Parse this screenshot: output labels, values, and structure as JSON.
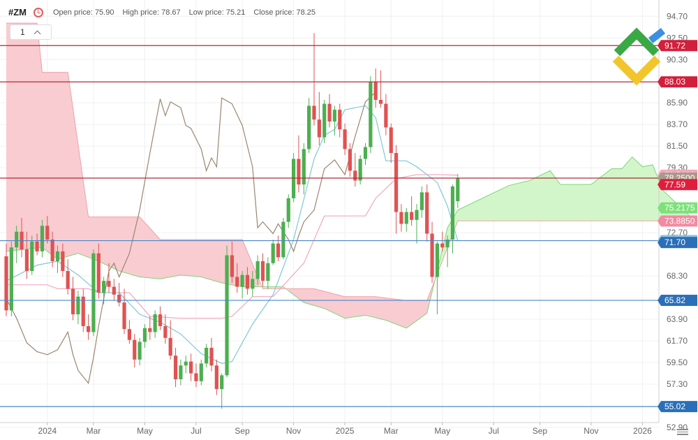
{
  "header": {
    "symbol": "#ZM",
    "open_label": "Open price:",
    "open_value": "75.90",
    "high_label": "High price:",
    "high_value": "78.67",
    "low_label": "Low price:",
    "low_value": "75.21",
    "close_label": "Close price:",
    "close_value": "78.25"
  },
  "interval": {
    "value": "1"
  },
  "colors": {
    "up": "#4caf50",
    "down": "#e05252",
    "cloud_red": "#f8c6cc",
    "cloud_green": "#cdf5c4",
    "resistance": "#b02a3a",
    "support": "#4a86c8"
  },
  "chart_data": {
    "type": "candlestick",
    "ylim": [
      52.9,
      96.0
    ],
    "y_ticks": [
      "94.70",
      "92.50",
      "90.30",
      "85.90",
      "83.70",
      "81.50",
      "79.30",
      "72.70",
      "68.30",
      "63.90",
      "61.70",
      "59.50",
      "57.30",
      "52.90"
    ],
    "y_tick_values": [
      94.7,
      92.5,
      90.3,
      85.9,
      83.7,
      81.5,
      79.3,
      72.7,
      68.3,
      63.9,
      61.7,
      59.5,
      57.3,
      52.9
    ],
    "x_ticks": [
      "2024",
      "Mar",
      "May",
      "Jul",
      "Sep",
      "Nov",
      "2025",
      "Mar",
      "May",
      "Jul",
      "Sep",
      "Nov",
      "2026"
    ],
    "x_tick_index": [
      8,
      17,
      27,
      37,
      46,
      56,
      66,
      75,
      85,
      95,
      104,
      114,
      124
    ],
    "horizontal_levels": [
      {
        "value": 91.72,
        "label": "91.72",
        "kind": "resistance"
      },
      {
        "value": 88.03,
        "label": "88.03",
        "kind": "resistance"
      },
      {
        "value": 78.25,
        "label": "78.2500",
        "kind": "close"
      },
      {
        "value": 71.89,
        "label": "71.8950",
        "kind": "support"
      },
      {
        "value": 65.82,
        "label": "65.82",
        "kind": "support"
      },
      {
        "value": 55.02,
        "label": "55.02",
        "kind": "support"
      }
    ],
    "price_tags": [
      {
        "value": 78.54,
        "label": "78.5400",
        "color": "#f4a6b8"
      },
      {
        "value": 78.25,
        "label": "78.2500",
        "color": "#a89a8a"
      },
      {
        "value": 77.59,
        "label": "77.59",
        "color": "#e01e3c"
      },
      {
        "value": 75.2175,
        "label": "75.2175",
        "color": "#7ee07a"
      },
      {
        "value": 73.885,
        "label": "73.8850",
        "color": "#f28aa0"
      },
      {
        "value": 71.895,
        "label": "71.8950",
        "color": "#8fc3e0"
      },
      {
        "value": 71.7,
        "label": "71.70",
        "color": "#2a6fb8"
      },
      {
        "value": 65.82,
        "label": "65.82",
        "color": "#2a6fb8"
      },
      {
        "value": 55.02,
        "label": "55.02",
        "color": "#2a6fb8"
      },
      {
        "value": 91.72,
        "label": "91.72",
        "color": "#d21f3c"
      },
      {
        "value": 88.03,
        "label": "88.03",
        "color": "#d21f3c"
      }
    ],
    "candles": [
      [
        70.3,
        71.6,
        64.2,
        64.8
      ],
      [
        64.8,
        71.8,
        64.2,
        71.2
      ],
      [
        71.2,
        73.4,
        69.6,
        72.8
      ],
      [
        72.8,
        74.2,
        70.2,
        71.0
      ],
      [
        71.0,
        72.8,
        68.0,
        68.8
      ],
      [
        68.8,
        72.4,
        68.4,
        71.8
      ],
      [
        71.8,
        72.6,
        70.4,
        70.8
      ],
      [
        70.8,
        74.0,
        70.2,
        73.4
      ],
      [
        73.4,
        74.4,
        71.6,
        72.0
      ],
      [
        72.0,
        72.8,
        69.2,
        69.8
      ],
      [
        69.8,
        71.4,
        68.6,
        70.8
      ],
      [
        70.8,
        71.6,
        68.2,
        68.8
      ],
      [
        68.8,
        70.0,
        66.4,
        67.0
      ],
      [
        67.0,
        68.2,
        63.8,
        64.4
      ],
      [
        64.4,
        66.8,
        63.4,
        66.2
      ],
      [
        66.2,
        67.0,
        62.6,
        63.2
      ],
      [
        63.2,
        64.4,
        61.8,
        62.6
      ],
      [
        62.6,
        71.0,
        62.2,
        70.6
      ],
      [
        70.6,
        71.6,
        66.0,
        66.6
      ],
      [
        66.6,
        68.2,
        65.4,
        67.8
      ],
      [
        67.8,
        69.6,
        66.6,
        67.2
      ],
      [
        67.2,
        68.0,
        65.8,
        66.4
      ],
      [
        66.4,
        67.6,
        65.2,
        65.6
      ],
      [
        65.6,
        67.0,
        62.4,
        62.9
      ],
      [
        62.9,
        63.8,
        61.4,
        61.8
      ],
      [
        61.8,
        62.4,
        59.0,
        59.8
      ],
      [
        59.8,
        62.0,
        59.2,
        61.6
      ],
      [
        61.6,
        63.4,
        61.0,
        63.0
      ],
      [
        63.0,
        64.2,
        61.8,
        62.6
      ],
      [
        62.6,
        64.8,
        62.0,
        64.4
      ],
      [
        64.4,
        65.2,
        62.8,
        63.2
      ],
      [
        63.2,
        64.4,
        61.4,
        62.0
      ],
      [
        62.0,
        63.8,
        59.8,
        60.2
      ],
      [
        60.2,
        61.0,
        57.0,
        57.8
      ],
      [
        57.8,
        59.8,
        57.2,
        59.2
      ],
      [
        59.2,
        60.2,
        58.4,
        59.6
      ],
      [
        59.6,
        60.4,
        57.6,
        58.4
      ],
      [
        58.4,
        59.4,
        57.0,
        57.6
      ],
      [
        57.6,
        59.8,
        57.2,
        59.4
      ],
      [
        59.4,
        61.4,
        59.0,
        61.0
      ],
      [
        61.0,
        62.0,
        58.6,
        59.2
      ],
      [
        59.2,
        59.8,
        56.2,
        56.8
      ],
      [
        56.8,
        58.4,
        54.8,
        58.2
      ],
      [
        58.2,
        71.4,
        58.0,
        70.4
      ],
      [
        70.4,
        71.8,
        67.6,
        68.2
      ],
      [
        68.2,
        69.6,
        66.6,
        67.2
      ],
      [
        67.2,
        68.8,
        66.0,
        68.4
      ],
      [
        68.4,
        69.2,
        66.4,
        67.0
      ],
      [
        67.0,
        68.8,
        66.2,
        68.0
      ],
      [
        68.0,
        70.4,
        67.4,
        69.8
      ],
      [
        69.8,
        70.6,
        67.2,
        67.8
      ],
      [
        67.8,
        70.2,
        67.0,
        69.6
      ],
      [
        69.6,
        72.0,
        69.4,
        71.6
      ],
      [
        71.6,
        72.4,
        69.8,
        70.2
      ],
      [
        70.2,
        74.2,
        70.0,
        73.8
      ],
      [
        73.8,
        76.6,
        73.2,
        76.2
      ],
      [
        76.2,
        80.8,
        75.8,
        80.2
      ],
      [
        80.2,
        82.6,
        76.8,
        77.6
      ],
      [
        77.6,
        81.8,
        76.6,
        81.2
      ],
      [
        81.2,
        86.4,
        80.8,
        85.6
      ],
      [
        85.6,
        93.0,
        83.6,
        84.2
      ],
      [
        84.2,
        87.0,
        81.6,
        82.4
      ],
      [
        82.4,
        86.2,
        81.8,
        85.8
      ],
      [
        85.8,
        86.8,
        83.4,
        84.0
      ],
      [
        84.0,
        85.6,
        82.6,
        85.2
      ],
      [
        85.2,
        85.8,
        82.4,
        83.2
      ],
      [
        83.2,
        83.8,
        80.6,
        81.2
      ],
      [
        81.2,
        81.8,
        78.4,
        79.0
      ],
      [
        79.0,
        80.8,
        77.4,
        78.0
      ],
      [
        78.0,
        80.6,
        77.6,
        80.2
      ],
      [
        80.2,
        81.8,
        79.6,
        81.4
      ],
      [
        81.4,
        88.6,
        80.8,
        88.0
      ],
      [
        88.0,
        89.4,
        85.4,
        86.2
      ],
      [
        86.2,
        89.2,
        85.4,
        85.8
      ],
      [
        85.8,
        86.8,
        82.6,
        83.4
      ],
      [
        83.4,
        83.8,
        79.8,
        80.8
      ],
      [
        80.8,
        81.6,
        72.6,
        74.8
      ],
      [
        74.8,
        75.6,
        72.8,
        73.6
      ],
      [
        73.6,
        75.2,
        72.8,
        74.8
      ],
      [
        74.8,
        76.4,
        73.4,
        74.0
      ],
      [
        74.0,
        75.6,
        71.6,
        75.0
      ],
      [
        75.0,
        77.4,
        74.2,
        76.8
      ],
      [
        76.8,
        77.6,
        71.8,
        72.6
      ],
      [
        72.6,
        73.8,
        67.6,
        68.2
      ],
      [
        68.2,
        71.8,
        64.4,
        71.6
      ],
      [
        71.6,
        72.8,
        70.8,
        71.2
      ],
      [
        71.2,
        72.4,
        69.2,
        72.0
      ],
      [
        72.0,
        77.6,
        70.6,
        77.4
      ],
      [
        75.9,
        78.67,
        75.21,
        78.25
      ]
    ],
    "cloud_span_a": [
      [
        0,
        70.8
      ],
      [
        7,
        71.2
      ],
      [
        10,
        70.0
      ],
      [
        14,
        70.6
      ],
      [
        18,
        69.8
      ],
      [
        22,
        68.8
      ],
      [
        26,
        68.2
      ],
      [
        30,
        68.0
      ],
      [
        34,
        68.4
      ],
      [
        38,
        68.2
      ],
      [
        42,
        67.6
      ],
      [
        46,
        67.2
      ],
      [
        50,
        67.2
      ],
      [
        54,
        67.2
      ],
      [
        58,
        65.6
      ],
      [
        62,
        65.0
      ],
      [
        66,
        64.0
      ],
      [
        70,
        64.3
      ],
      [
        74,
        63.8
      ],
      [
        78,
        63.0
      ],
      [
        82,
        64.5
      ],
      [
        86,
        73.2
      ],
      [
        88,
        75.0
      ],
      [
        94,
        76.5
      ],
      [
        98,
        77.5
      ],
      [
        102,
        78.0
      ],
      [
        106,
        79.0
      ],
      [
        108,
        77.6
      ],
      [
        114,
        77.6
      ],
      [
        118,
        79.2
      ],
      [
        120,
        79.2
      ],
      [
        122,
        80.4
      ],
      [
        124,
        79.4
      ],
      [
        126,
        79.6
      ],
      [
        128,
        77.0
      ],
      [
        130,
        76.0
      ],
      [
        134,
        74.0
      ],
      [
        136,
        73.8
      ]
    ],
    "cloud_span_b": [
      [
        0,
        94.0
      ],
      [
        6,
        94.0
      ],
      [
        7,
        89.0
      ],
      [
        12,
        89.0
      ],
      [
        16,
        74.3
      ],
      [
        26,
        74.3
      ],
      [
        30,
        72.0
      ],
      [
        46,
        72.0
      ],
      [
        50,
        67.0
      ],
      [
        60,
        67.0
      ],
      [
        66,
        66.2
      ],
      [
        72,
        66.2
      ],
      [
        78,
        65.8
      ],
      [
        82,
        65.8
      ],
      [
        88,
        73.9
      ],
      [
        136,
        73.9
      ]
    ],
    "kijun": [
      [
        0,
        67.4
      ],
      [
        8,
        67.4
      ],
      [
        10,
        67.0
      ],
      [
        16,
        67.0
      ],
      [
        18,
        66.6
      ],
      [
        24,
        66.6
      ],
      [
        28,
        64.2
      ],
      [
        34,
        64.0
      ],
      [
        42,
        64.0
      ],
      [
        44,
        64.2
      ],
      [
        48,
        66.2
      ],
      [
        52,
        66.2
      ],
      [
        58,
        69.6
      ],
      [
        62,
        74.4
      ],
      [
        70,
        74.4
      ],
      [
        72,
        76.2
      ],
      [
        76,
        78.2
      ],
      [
        80,
        78.6
      ],
      [
        84,
        78.6
      ],
      [
        88,
        78.54
      ]
    ],
    "tenkan": [
      [
        0,
        67.8
      ],
      [
        6,
        69.4
      ],
      [
        10,
        69.8
      ],
      [
        14,
        68.4
      ],
      [
        18,
        66.6
      ],
      [
        22,
        66.6
      ],
      [
        26,
        64.4
      ],
      [
        30,
        63.6
      ],
      [
        34,
        62.4
      ],
      [
        38,
        60.4
      ],
      [
        42,
        59.4
      ],
      [
        44,
        59.6
      ],
      [
        48,
        63.4
      ],
      [
        52,
        66.4
      ],
      [
        56,
        72.0
      ],
      [
        60,
        80.2
      ],
      [
        62,
        82.6
      ],
      [
        64,
        83.2
      ],
      [
        66,
        85.2
      ],
      [
        70,
        85.6
      ],
      [
        72,
        84.4
      ],
      [
        74,
        80.0
      ],
      [
        78,
        80.0
      ],
      [
        80,
        79.4
      ],
      [
        84,
        77.8
      ],
      [
        86,
        75.4
      ],
      [
        88,
        71.9
      ]
    ],
    "chikou": [
      [
        0,
        66.0
      ],
      [
        2,
        64.0
      ],
      [
        4,
        61.5
      ],
      [
        6,
        60.6
      ],
      [
        8,
        60.3
      ],
      [
        10,
        60.8
      ],
      [
        12,
        62.6
      ],
      [
        13,
        60.3
      ],
      [
        14,
        58.7
      ],
      [
        16,
        57.4
      ],
      [
        17,
        60.0
      ],
      [
        18,
        63.2
      ],
      [
        20,
        68.8
      ],
      [
        21,
        69.6
      ],
      [
        22,
        68.2
      ],
      [
        24,
        70.6
      ],
      [
        26,
        75.0
      ],
      [
        28,
        80.8
      ],
      [
        30,
        86.3
      ],
      [
        31,
        84.6
      ],
      [
        32,
        86.0
      ],
      [
        34,
        85.4
      ],
      [
        35,
        83.6
      ],
      [
        36,
        83.3
      ],
      [
        38,
        81.2
      ],
      [
        39,
        79.0
      ],
      [
        40,
        80.3
      ],
      [
        41,
        79.4
      ],
      [
        42,
        86.4
      ],
      [
        44,
        85.8
      ],
      [
        46,
        83.6
      ],
      [
        48,
        79.4
      ],
      [
        49,
        73.2
      ],
      [
        50,
        73.8
      ],
      [
        52,
        72.6
      ],
      [
        53,
        73.6
      ],
      [
        54,
        72.8
      ],
      [
        55,
        72.0
      ],
      [
        56,
        70.8
      ],
      [
        57,
        72.4
      ],
      [
        58,
        73.8
      ],
      [
        60,
        75.0
      ],
      [
        62,
        79.2
      ],
      [
        64,
        80.1
      ],
      [
        66,
        78.6
      ],
      [
        68,
        82.5
      ],
      [
        70,
        86.0
      ],
      [
        72,
        87.0
      ]
    ]
  }
}
